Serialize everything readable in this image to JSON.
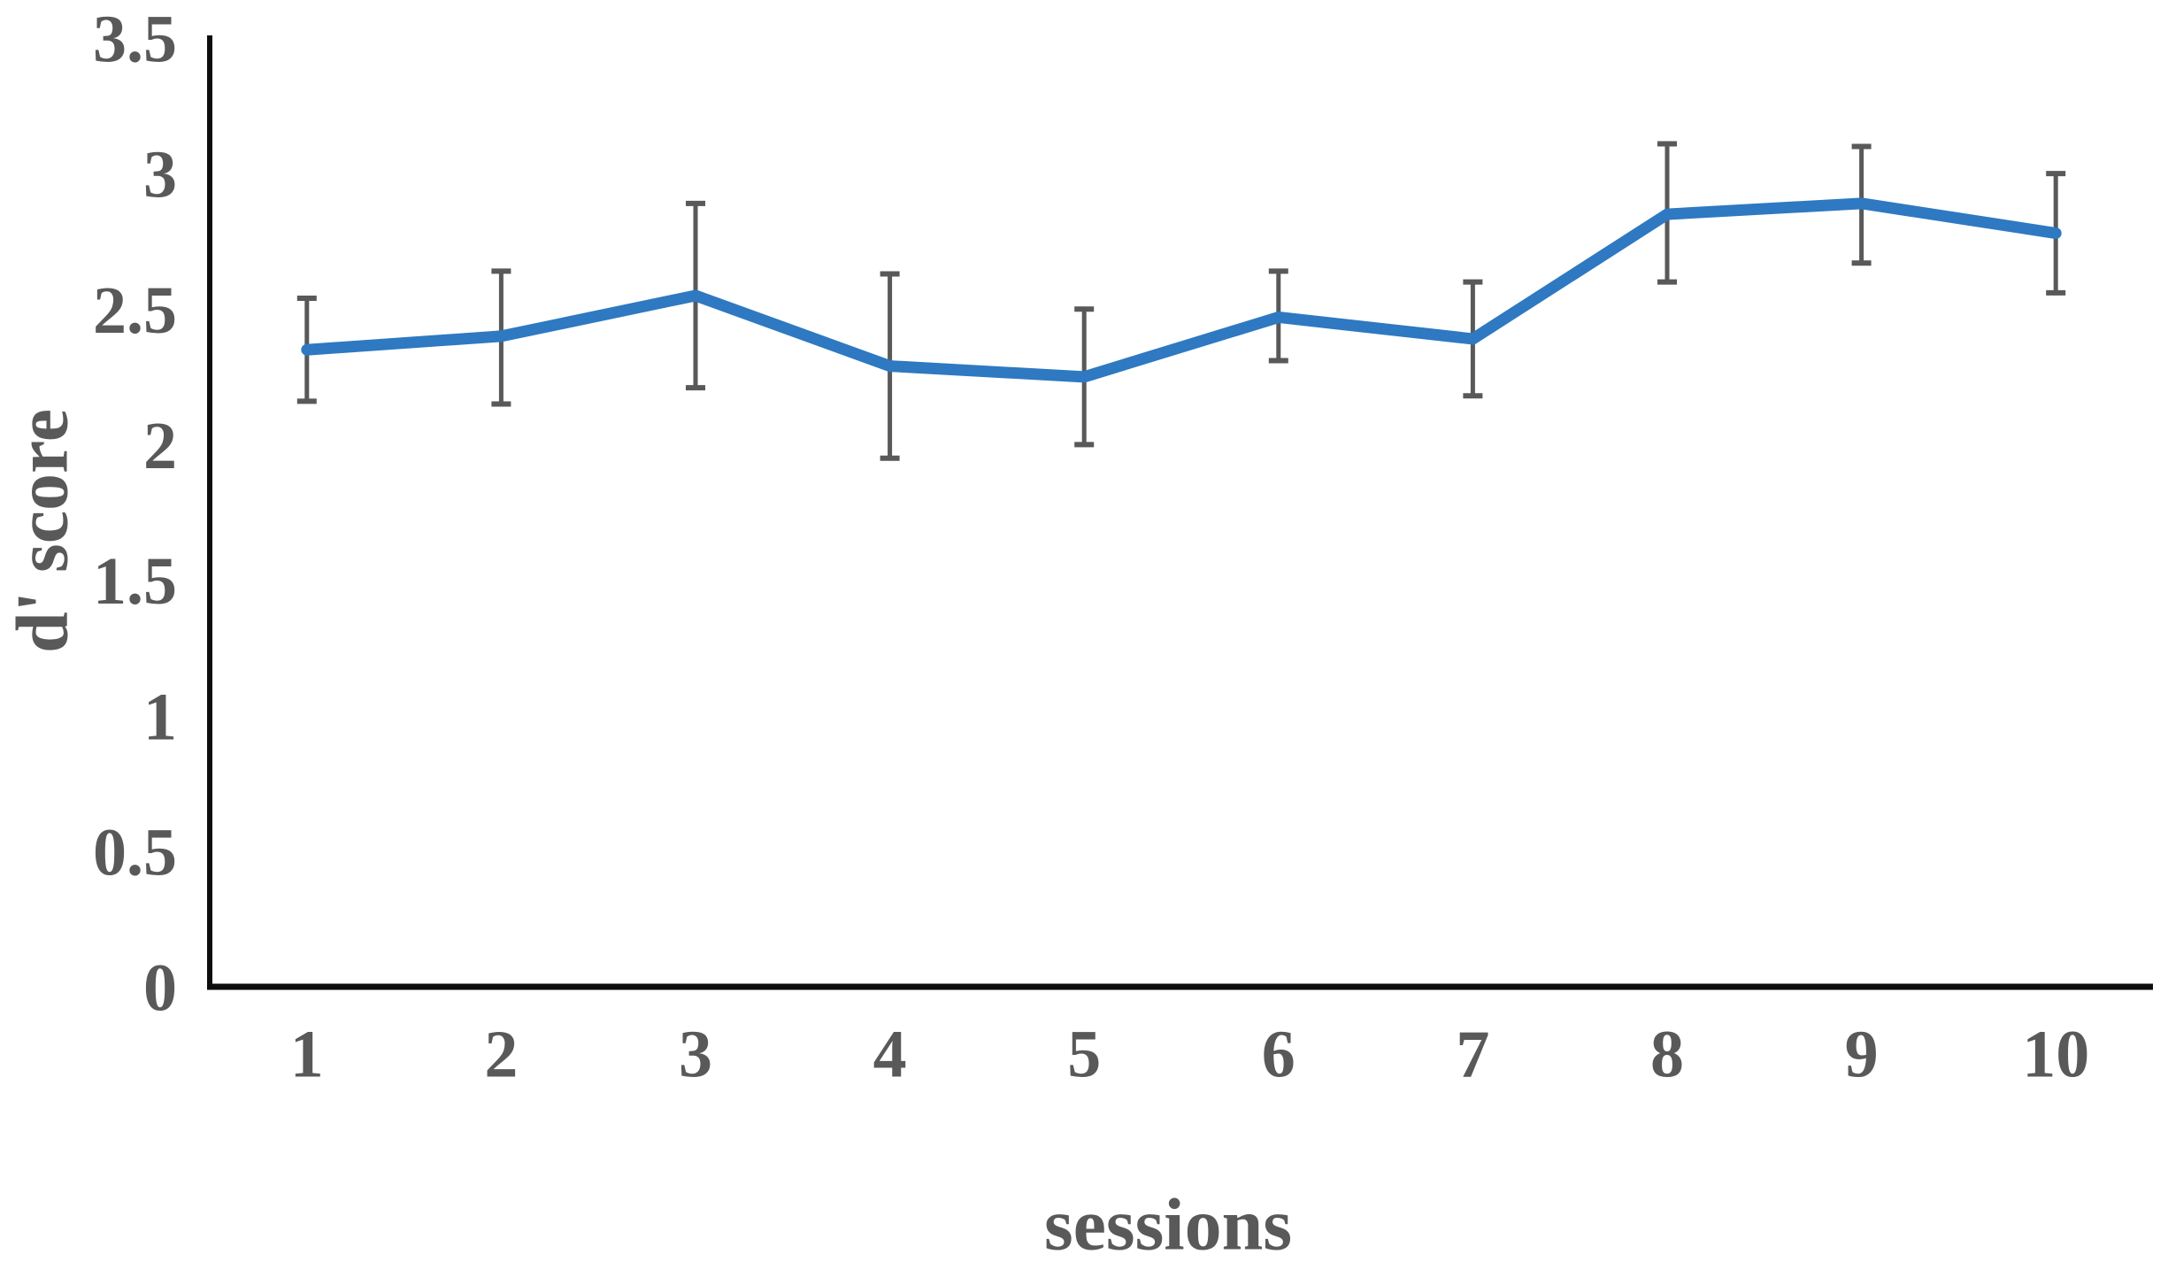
{
  "chart_data": {
    "type": "line",
    "title": "",
    "xlabel": "sessions",
    "ylabel": "d' score",
    "x": [
      1,
      2,
      3,
      4,
      5,
      6,
      7,
      8,
      9,
      10
    ],
    "x_tick_labels": [
      "1",
      "2",
      "3",
      "4",
      "5",
      "6",
      "7",
      "8",
      "9",
      "10"
    ],
    "series": [
      {
        "name": "d' score",
        "values": [
          2.35,
          2.4,
          2.55,
          2.29,
          2.25,
          2.47,
          2.39,
          2.85,
          2.89,
          2.78
        ],
        "error_plus": [
          0.19,
          0.24,
          0.34,
          0.34,
          0.25,
          0.17,
          0.21,
          0.26,
          0.21,
          0.22
        ],
        "error_minus": [
          0.19,
          0.25,
          0.34,
          0.34,
          0.25,
          0.16,
          0.21,
          0.25,
          0.22,
          0.22
        ]
      }
    ],
    "ylim": [
      0,
      3.5
    ],
    "ytick_step": 0.5,
    "y_tick_labels": [
      "0",
      "0.5",
      "1",
      "1.5",
      "2",
      "2.5",
      "3",
      "3.5"
    ],
    "grid": false,
    "legend": "none",
    "colors": {
      "line": "#2E79C1",
      "error_bar": "#595959",
      "axis": "#0d0d0d",
      "text": "#595959"
    }
  }
}
